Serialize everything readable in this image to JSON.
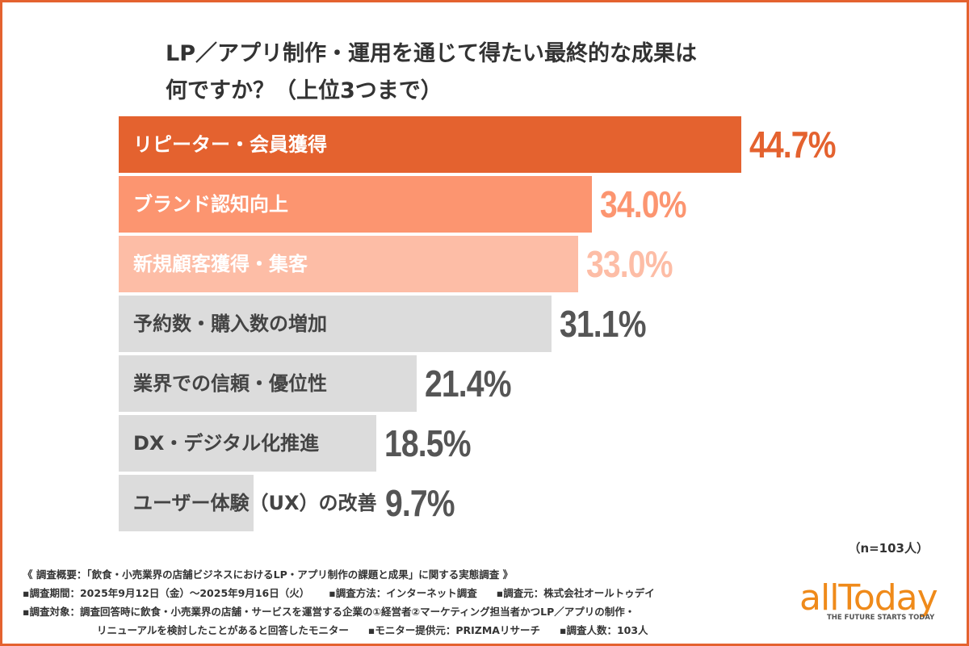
{
  "title_line1": "LP／アプリ制作・運用を通じて得たい最終的な成果は",
  "title_line2": "何ですか？（上位3つまで）",
  "chart_data": {
    "type": "bar",
    "orientation": "horizontal",
    "categories": [
      "リピーター・会員獲得",
      "ブランド認知向上",
      "新規顧客獲得・集客",
      "予約数・購入数の増加",
      "業界での信頼・優位性",
      "DX・デジタル化推進",
      "ユーザー体験（UX）の改善"
    ],
    "values": [
      44.7,
      34.0,
      33.0,
      31.1,
      21.4,
      18.5,
      9.7
    ],
    "value_labels": [
      "44.7%",
      "34.0%",
      "33.0%",
      "31.1%",
      "21.4%",
      "18.5%",
      "9.7%"
    ],
    "bar_colors": [
      "#e4622f",
      "#fc9570",
      "#fdbda6",
      "#dcdcdc",
      "#dcdcdc",
      "#dcdcdc",
      "#dcdcdc"
    ],
    "label_colors": [
      "#ffffff",
      "#ffffff",
      "#ffffff",
      "#444444",
      "#444444",
      "#444444",
      "#444444"
    ],
    "value_colors": [
      "#e4622f",
      "#fc9570",
      "#fdbda6",
      "#555555",
      "#555555",
      "#555555",
      "#555555"
    ],
    "grid": false
  },
  "sample_size": "（n=103人）",
  "notes": {
    "line1": "《 調査概要：「飲食・小売業界の店舗ビジネスにおけるLP・アプリ制作の課題と成果」に関する実態調査 》",
    "period": "▪調査期間：2025年9月12日（金）～2025年9月16日（火）",
    "method": "▪調査方法：インターネット調査",
    "source": "▪調査元：株式会社オールトゥデイ",
    "target1": "▪調査対象：調査回答時に飲食・小売業界の店舗・サービスを運営する企業の①経営者②マーケティング担当者かつLP／アプリの制作・",
    "target2": "リニューアルを検討したことがあると回答したモニター",
    "provider": "▪モニター提供元：PRIZMAリサーチ",
    "count": "▪調査人数：103人"
  },
  "logo": {
    "word": "allToday",
    "tagline": "THE FUTURE STARTS TODAY",
    "color": "#ef8a1a"
  }
}
